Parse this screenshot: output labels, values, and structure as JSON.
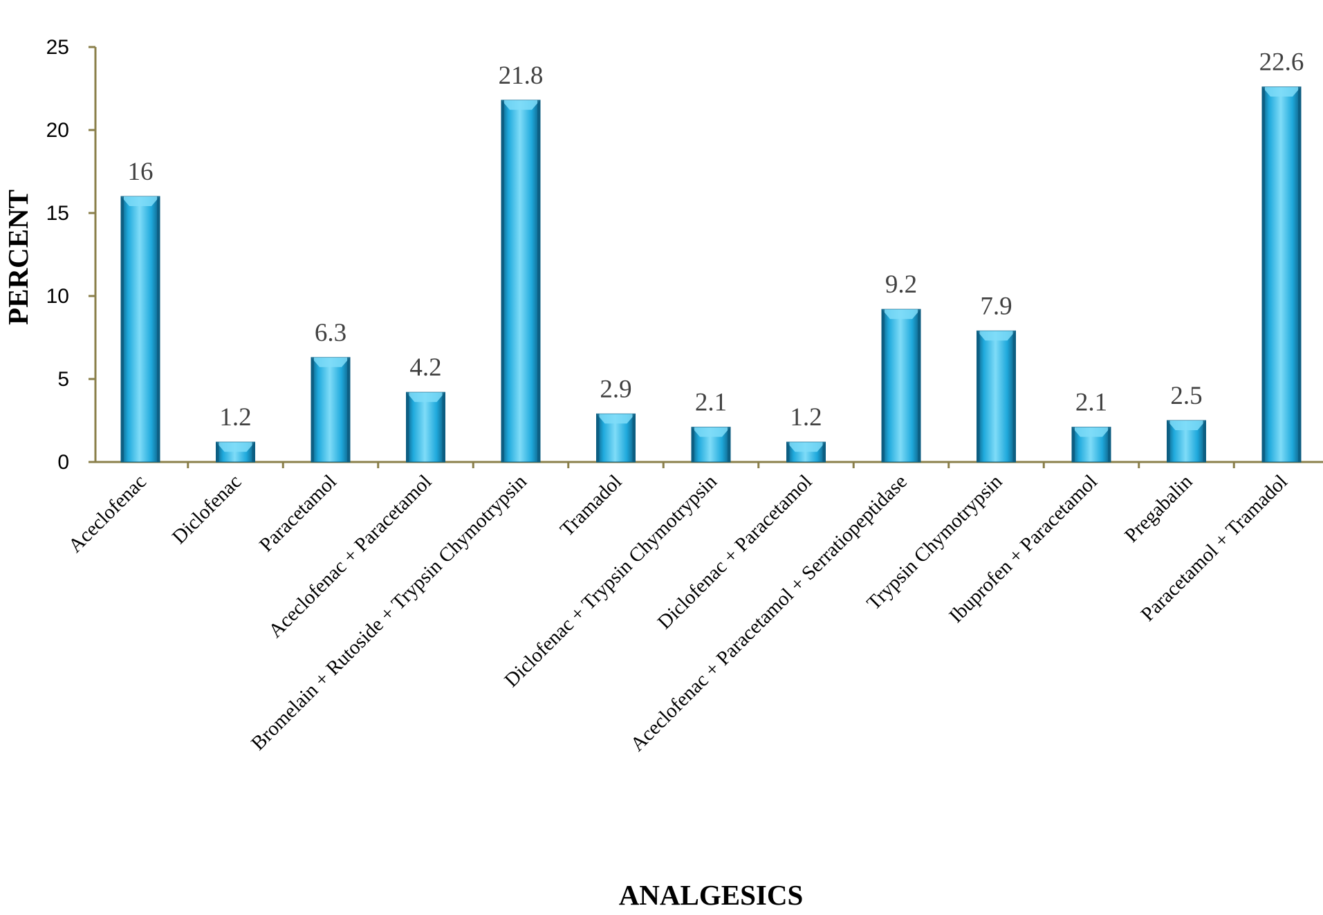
{
  "chart_data": {
    "type": "bar",
    "title": "",
    "xlabel": "ANALGESICS",
    "ylabel": "PERCENT",
    "ylim": [
      0,
      25
    ],
    "yticks": [
      0,
      5,
      10,
      15,
      20,
      25
    ],
    "grid": false,
    "legend": "none",
    "categories": [
      "Aceclofenac",
      "Diclofenac",
      "Paracetamol",
      "Aceclofenac + Paracetamol",
      "Bromelain + Rutoside + Trypsin Chymotrypsin",
      "Tramadol",
      "Diclofenac + Trypsin Chymotrypsin",
      "Diclofenac + Paracetamol",
      "Aceclofenac + Paracetamol + Serratiopeptidase",
      "Trypsin Chymotrypsin",
      "Ibuprofen + Paracetamol",
      "Pregabalin",
      "Paracetamol + Tramadol"
    ],
    "values": [
      16,
      1.2,
      6.3,
      4.2,
      21.8,
      2.9,
      2.1,
      1.2,
      9.2,
      7.9,
      2.1,
      2.5,
      22.6
    ],
    "data_labels": [
      "16",
      "1.2",
      "6.3",
      "4.2",
      "21.8",
      "2.9",
      "2.1",
      "1.2",
      "9.2",
      "7.9",
      "2.1",
      "2.5",
      "22.6"
    ],
    "colors": {
      "bar_light": "#7fdcf8",
      "bar_main": "#1fa9dc",
      "bar_dark": "#0c5c80",
      "axis": "#8a7f4a",
      "label": "#404040"
    }
  }
}
